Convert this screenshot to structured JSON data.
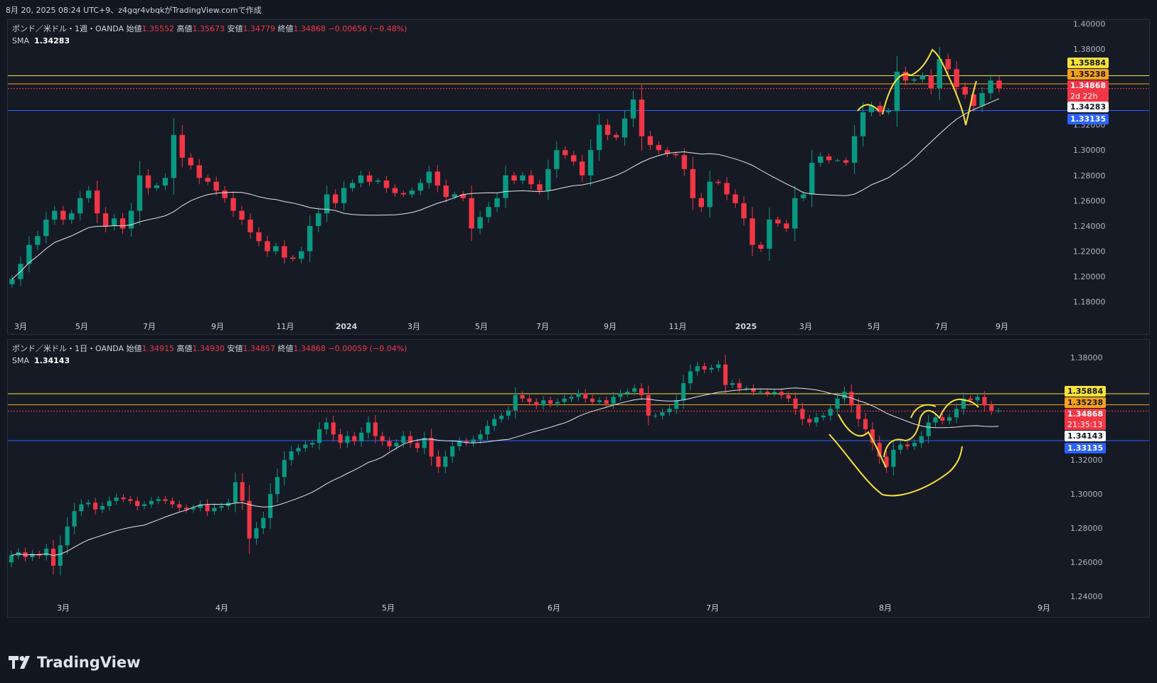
{
  "header": {
    "text": "8月 20, 2025 08:24 UTC+9、z4gqr4vbqkがTradingView.comで作成"
  },
  "colors": {
    "up": "#089981",
    "down": "#f23645",
    "sma": "#e6e6e6",
    "resistance": "#f7e23b",
    "support": "#2962ff",
    "price_line": "#f23645",
    "background": "#161a25",
    "annotation": "#f7e23b"
  },
  "panels": [
    {
      "symbol": "ポンド／米ドル・1週・OANDA",
      "o_label": "始値",
      "o": "1.35552",
      "h_label": "高値",
      "h": "1.35673",
      "l_label": "安値",
      "l": "1.34779",
      "c_label": "終値",
      "c": "1.34868",
      "change": "−0.00656 (−0.48%)",
      "sma_label": "SMA",
      "sma": "1.34283",
      "badges": {
        "resistance_top": "1.35884",
        "resistance_mid": "1.35238",
        "price": "1.34868",
        "countdown": "2d 22h",
        "sma": "1.34283",
        "support": "1.33135"
      }
    },
    {
      "symbol": "ポンド／米ドル・1日・OANDA",
      "o_label": "始値",
      "o": "1.34915",
      "h_label": "高値",
      "h": "1.34930",
      "l_label": "安値",
      "l": "1.34857",
      "c_label": "終値",
      "c": "1.34868",
      "change": "−0.00059 (−0.04%)",
      "sma_label": "SMA",
      "sma": "1.34143",
      "badges": {
        "resistance_top": "1.35884",
        "resistance_mid": "1.35238",
        "price": "1.34868",
        "countdown": "21:35:13",
        "sma": "1.34143",
        "support": "1.33135"
      }
    }
  ],
  "chart_data": [
    {
      "type": "candlestick",
      "timeframe": "1週",
      "y_ticks": [
        "1.40000",
        "1.38000",
        "1.36000",
        "1.34000",
        "1.32000",
        "1.30000",
        "1.28000",
        "1.26000",
        "1.24000",
        "1.22000",
        "1.20000",
        "1.18000"
      ],
      "x_ticks": [
        "3月",
        "5月",
        "7月",
        "9月",
        "11月",
        "2024",
        "3月",
        "5月",
        "7月",
        "9月",
        "11月",
        "2025",
        "3月",
        "5月",
        "7月",
        "9月"
      ],
      "ylim": [
        1.168,
        1.403
      ],
      "horizontal_lines": [
        1.35884,
        1.35238,
        1.33135
      ],
      "price": 1.34868,
      "close_path": [
        1.198,
        1.21,
        1.225,
        1.232,
        1.245,
        1.252,
        1.245,
        1.25,
        1.262,
        1.268,
        1.25,
        1.24,
        1.246,
        1.238,
        1.252,
        1.28,
        1.27,
        1.272,
        1.278,
        1.312,
        1.294,
        1.288,
        1.278,
        1.275,
        1.268,
        1.262,
        1.252,
        1.245,
        1.235,
        1.228,
        1.22,
        1.224,
        1.215,
        1.214,
        1.22,
        1.24,
        1.25,
        1.265,
        1.258,
        1.27,
        1.274,
        1.28,
        1.275,
        1.276,
        1.27,
        1.266,
        1.265,
        1.268,
        1.274,
        1.283,
        1.272,
        1.263,
        1.265,
        1.262,
        1.238,
        1.247,
        1.255,
        1.262,
        1.28,
        1.276,
        1.28,
        1.273,
        1.268,
        1.285,
        1.3,
        1.296,
        1.291,
        1.28,
        1.3,
        1.32,
        1.312,
        1.31,
        1.325,
        1.34,
        1.311,
        1.304,
        1.3,
        1.297,
        1.296,
        1.285,
        1.262,
        1.255,
        1.275,
        1.274,
        1.265,
        1.258,
        1.246,
        1.225,
        1.222,
        1.245,
        1.242,
        1.238,
        1.262,
        1.265,
        1.29,
        1.295,
        1.292,
        1.292,
        1.29,
        1.311,
        1.33,
        1.335,
        1.33,
        1.331,
        1.362,
        1.355,
        1.356,
        1.359,
        1.349,
        1.372,
        1.364,
        1.35,
        1.344,
        1.335,
        1.345,
        1.355,
        1.349
      ]
    },
    {
      "type": "candlestick",
      "timeframe": "1日",
      "y_ticks": [
        "1.38000",
        "1.36000",
        "1.34000",
        "1.32000",
        "1.30000",
        "1.28000",
        "1.26000",
        "1.24000"
      ],
      "x_ticks": [
        "3月",
        "4月",
        "5月",
        "6月",
        "7月",
        "8月",
        "9月"
      ],
      "ylim": [
        1.2355,
        1.3905
      ],
      "horizontal_lines": [
        1.35884,
        1.35238,
        1.33135
      ],
      "price": 1.34868,
      "close_path": [
        1.264,
        1.266,
        1.263,
        1.265,
        1.264,
        1.268,
        1.258,
        1.27,
        1.281,
        1.29,
        1.294,
        1.295,
        1.291,
        1.293,
        1.296,
        1.298,
        1.297,
        1.296,
        1.293,
        1.294,
        1.296,
        1.297,
        1.296,
        1.294,
        1.292,
        1.291,
        1.292,
        1.294,
        1.29,
        1.292,
        1.293,
        1.295,
        1.307,
        1.296,
        1.274,
        1.28,
        1.286,
        1.3,
        1.31,
        1.32,
        1.325,
        1.327,
        1.329,
        1.33,
        1.338,
        1.342,
        1.335,
        1.33,
        1.334,
        1.331,
        1.336,
        1.342,
        1.334,
        1.331,
        1.328,
        1.33,
        1.334,
        1.33,
        1.327,
        1.333,
        1.322,
        1.316,
        1.322,
        1.328,
        1.331,
        1.33,
        1.332,
        1.335,
        1.34,
        1.344,
        1.346,
        1.349,
        1.358,
        1.356,
        1.354,
        1.352,
        1.355,
        1.353,
        1.354,
        1.356,
        1.357,
        1.359,
        1.356,
        1.354,
        1.355,
        1.353,
        1.357,
        1.359,
        1.36,
        1.362,
        1.358,
        1.346,
        1.346,
        1.348,
        1.35,
        1.355,
        1.365,
        1.372,
        1.375,
        1.373,
        1.374,
        1.376,
        1.364,
        1.365,
        1.362,
        1.362,
        1.36,
        1.36,
        1.359,
        1.36,
        1.358,
        1.356,
        1.35,
        1.344,
        1.342,
        1.345,
        1.346,
        1.35,
        1.356,
        1.36,
        1.352,
        1.344,
        1.338,
        1.33,
        1.322,
        1.316,
        1.326,
        1.329,
        1.328,
        1.33,
        1.334,
        1.342,
        1.345,
        1.343,
        1.345,
        1.35,
        1.356,
        1.355,
        1.357,
        1.352,
        1.349,
        1.349
      ]
    }
  ]
}
